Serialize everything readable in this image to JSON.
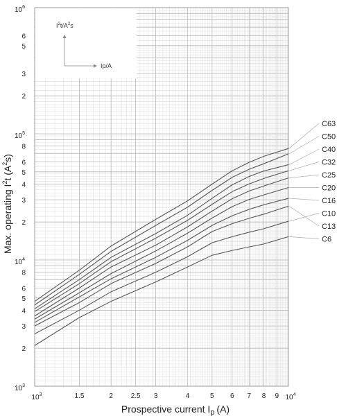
{
  "chart_data": {
    "type": "line",
    "title": "",
    "xlabel": "Prospective current I",
    "xlabel_sub": "p",
    "xlabel_unit": "(A)",
    "ylabel": "Max. operating I",
    "ylabel_sup": "2",
    "ylabel_unit": "t  (A",
    "ylabel_unit_sup": "2",
    "ylabel_unit_end": "s)",
    "x_scale": "log",
    "y_scale": "log",
    "xlim": [
      1000,
      10000
    ],
    "ylim": [
      1000,
      1000000
    ],
    "grid": true,
    "x_ticks": [
      {
        "value": 1000,
        "base": "10",
        "exp": "3"
      },
      {
        "value": 1500,
        "label": "1.5"
      },
      {
        "value": 2000,
        "label": "2"
      },
      {
        "value": 2500,
        "label": "2.5"
      },
      {
        "value": 3000,
        "label": "3"
      },
      {
        "value": 4000,
        "label": "4"
      },
      {
        "value": 5000,
        "label": "5"
      },
      {
        "value": 6000,
        "label": "6"
      },
      {
        "value": 7000,
        "label": "7"
      },
      {
        "value": 8000,
        "label": "8"
      },
      {
        "value": 9000,
        "label": "9"
      },
      {
        "value": 10000,
        "base": "10",
        "exp": "4"
      }
    ],
    "y_ticks": [
      {
        "value": 1000,
        "base": "10",
        "exp": "3"
      },
      {
        "value": 2000,
        "label": "2"
      },
      {
        "value": 3000,
        "label": "3"
      },
      {
        "value": 4000,
        "label": "4"
      },
      {
        "value": 5000,
        "label": "5"
      },
      {
        "value": 6000,
        "label": "6"
      },
      {
        "value": 8000,
        "label": "8"
      },
      {
        "value": 10000,
        "base": "10",
        "exp": "4"
      },
      {
        "value": 20000,
        "label": "2"
      },
      {
        "value": 30000,
        "label": "3"
      },
      {
        "value": 40000,
        "label": "4"
      },
      {
        "value": 50000,
        "label": "5"
      },
      {
        "value": 60000,
        "label": "6"
      },
      {
        "value": 80000,
        "label": "8"
      },
      {
        "value": 100000,
        "base": "10",
        "exp": "5"
      },
      {
        "value": 200000,
        "label": "2"
      },
      {
        "value": 300000,
        "label": "3"
      },
      {
        "value": 500000,
        "label": "5"
      },
      {
        "value": 600000,
        "label": "6"
      },
      {
        "value": 1000000,
        "base": "10",
        "exp": "6"
      }
    ],
    "x": [
      1000,
      1500,
      2000,
      3000,
      4000,
      5000,
      6000,
      7000,
      8000,
      10000
    ],
    "series": [
      {
        "name": "C6",
        "values": [
          2100,
          3500,
          4700,
          6700,
          8800,
          10900,
          11900,
          12700,
          13400,
          15300
        ]
      },
      {
        "name": "C10",
        "values": [
          2600,
          4000,
          5600,
          8000,
          10600,
          13700,
          15300,
          16600,
          17700,
          20300
        ]
      },
      {
        "name": "C13",
        "values": [
          3000,
          4600,
          6500,
          9400,
          12700,
          16800,
          19400,
          21400,
          23100,
          26700
        ]
      },
      {
        "name": "C16",
        "values": [
          3200,
          5100,
          7100,
          10500,
          14300,
          18800,
          22400,
          25200,
          27400,
          30800
        ]
      },
      {
        "name": "C20",
        "values": [
          3400,
          5500,
          7800,
          11800,
          16300,
          21500,
          26500,
          30200,
          32800,
          37500
        ]
      },
      {
        "name": "C25",
        "values": [
          3600,
          6000,
          8800,
          13100,
          18300,
          24400,
          30600,
          35200,
          38600,
          44700
        ]
      },
      {
        "name": "C32",
        "values": [
          3900,
          6500,
          9700,
          14900,
          20600,
          27600,
          34800,
          40100,
          44300,
          51000
        ]
      },
      {
        "name": "C40",
        "values": [
          4100,
          7000,
          10500,
          16200,
          22600,
          30800,
          39400,
          45900,
          50800,
          56900
        ]
      },
      {
        "name": "C50",
        "values": [
          4400,
          7700,
          11700,
          18800,
          26200,
          35600,
          45200,
          52400,
          58000,
          69400
        ]
      },
      {
        "name": "C63",
        "values": [
          4700,
          8300,
          12900,
          21000,
          29400,
          39900,
          50900,
          59400,
          66400,
          76500
        ]
      }
    ],
    "series_labels": [
      {
        "name": "C63",
        "text": "C63"
      },
      {
        "name": "C50",
        "text": "C50"
      },
      {
        "name": "C40",
        "text": "C40"
      },
      {
        "name": "C32",
        "text": "C32"
      },
      {
        "name": "C25",
        "text": "C25"
      },
      {
        "name": "C20",
        "text": "C20"
      },
      {
        "name": "C16",
        "text": "C16"
      },
      {
        "name": "C10",
        "text": "C10"
      },
      {
        "name": "C13",
        "text": "C13"
      },
      {
        "name": "C6",
        "text": "C6"
      }
    ],
    "inset": {
      "y_label": "I",
      "y_label_sup": "2",
      "y_label_rest": "t/A",
      "y_label_sup2": "2",
      "y_label_end": "s",
      "x_label": "Ip/A"
    },
    "colors": {
      "line": "#555555",
      "grid_major": "#b5b5b5",
      "grid_minor": "#dddddd",
      "leader": "#aaaaaa"
    }
  }
}
